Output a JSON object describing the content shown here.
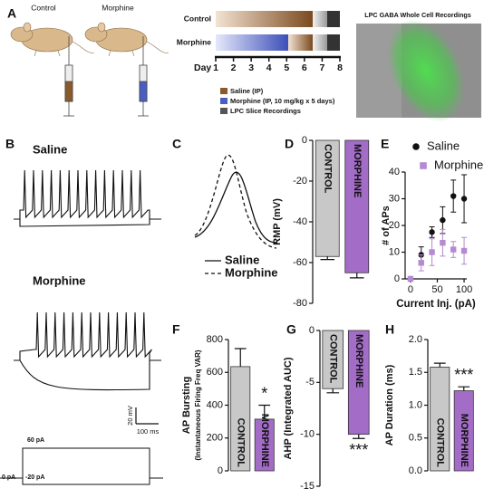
{
  "panel_a": {
    "letter": "A",
    "mouse_labels": [
      "Control",
      "Morphine"
    ],
    "rows": [
      "Control",
      "Morphine"
    ],
    "axis_label": "Day",
    "days": [
      1,
      2,
      3,
      4,
      5,
      6,
      7,
      8
    ],
    "legend": [
      "Saline (IP)",
      "Morphine (IP, 10 mg/kg x 5 days)",
      "LPC Slice Recordings"
    ],
    "image_title": "LPC GABA Whole Cell Recordings"
  },
  "panel_b": {
    "letter": "B",
    "traces": [
      "Saline",
      "Morphine"
    ],
    "scale_bar": [
      "20 mV",
      "100 ms"
    ],
    "step_labels": [
      "60 pA",
      "0 pA",
      "-20 pA"
    ]
  },
  "panel_c": {
    "letter": "C",
    "legend": [
      "Saline",
      "Morphine"
    ]
  },
  "chart_data": [
    {
      "type": "bar",
      "panel": "D",
      "ylabel": "RMP (mV)",
      "categories": [
        "CONTROL",
        "MORPHINE"
      ],
      "values": [
        -57,
        -65
      ],
      "errors": [
        1.5,
        2.5
      ],
      "colors": [
        "#c8c8c8",
        "#a36cc6"
      ],
      "ylim": [
        -80,
        0
      ],
      "yticks": [
        0,
        -20,
        -40,
        -60,
        -80
      ]
    },
    {
      "type": "scatter",
      "panel": "E",
      "xlabel": "Current Inj. (pA)",
      "ylabel": "# of APs",
      "x": [
        0,
        20,
        40,
        60,
        80,
        100
      ],
      "series": [
        {
          "name": "Saline",
          "color": "#111111",
          "marker": "circle",
          "values": [
            0,
            9,
            17.5,
            22,
            31,
            30
          ],
          "errors": [
            0,
            3,
            2,
            5,
            6,
            9
          ]
        },
        {
          "name": "Morphine",
          "color": "#b58ad0",
          "marker": "square",
          "values": [
            0,
            6,
            10,
            13.5,
            11,
            10.5
          ],
          "errors": [
            0,
            3,
            5,
            5,
            3,
            5
          ]
        }
      ],
      "xlim": [
        -10,
        105
      ],
      "xticks": [
        0,
        50,
        100
      ],
      "ylim": [
        0,
        40
      ],
      "yticks": [
        0,
        10,
        20,
        30,
        40
      ]
    },
    {
      "type": "bar",
      "panel": "F",
      "ylabel": [
        "AP Bursting",
        "(Instantaneous Firing Freq VAR)"
      ],
      "categories": [
        "CONTROL",
        "MORPHINE"
      ],
      "values": [
        635,
        315
      ],
      "errors": [
        110,
        85
      ],
      "colors": [
        "#c8c8c8",
        "#a36cc6"
      ],
      "ylim": [
        0,
        800
      ],
      "yticks": [
        0,
        200,
        400,
        600,
        800
      ],
      "annotation": "*"
    },
    {
      "type": "bar",
      "panel": "G",
      "ylabel": "AHP (Integrated AUC)",
      "categories": [
        "CONTROL",
        "MORPHINE"
      ],
      "values": [
        -5.6,
        -10
      ],
      "errors": [
        0.4,
        0.4
      ],
      "colors": [
        "#c8c8c8",
        "#a36cc6"
      ],
      "ylim": [
        -15,
        0
      ],
      "yticks": [
        0,
        -5,
        -10,
        -15
      ],
      "annotation": "***"
    },
    {
      "type": "bar",
      "panel": "H",
      "ylabel": "AP Duration (ms)",
      "categories": [
        "CONTROL",
        "MORPHINE"
      ],
      "values": [
        1.58,
        1.22
      ],
      "errors": [
        0.06,
        0.06
      ],
      "colors": [
        "#c8c8c8",
        "#a36cc6"
      ],
      "ylim": [
        0,
        2
      ],
      "yticks": [
        {
          "value": 0,
          "label": "0.0"
        },
        0.5,
        {
          "value": 1,
          "label": "1.0"
        },
        1.5,
        {
          "value": 2,
          "label": "2.0"
        }
      ],
      "annotation": "***"
    }
  ]
}
